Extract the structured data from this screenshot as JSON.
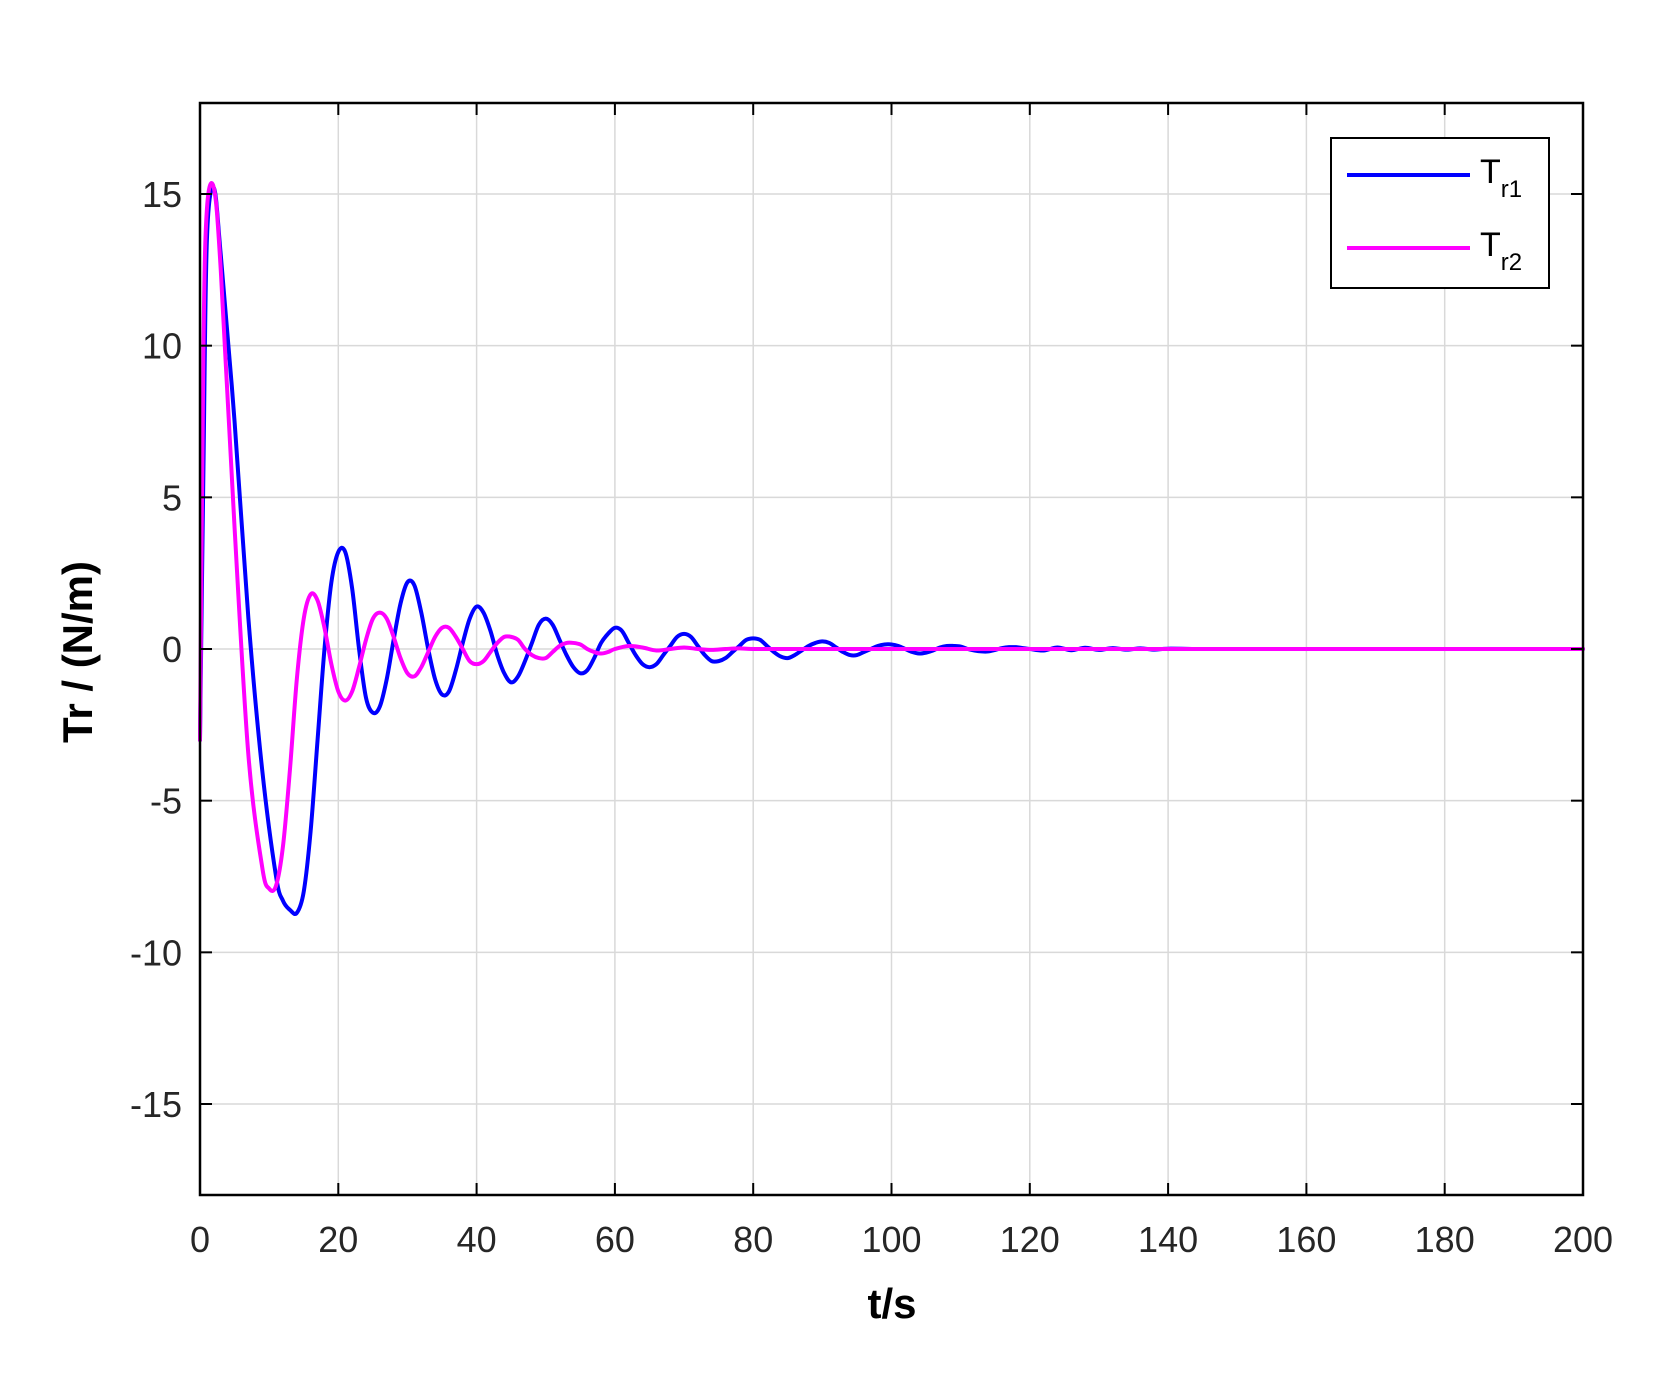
{
  "chart_data": {
    "type": "line",
    "title": "",
    "xlabel": "t/s",
    "ylabel": "Tr / (N/m)",
    "xlim": [
      0,
      200
    ],
    "ylim": [
      -18,
      18
    ],
    "xticks": [
      0,
      20,
      40,
      60,
      80,
      100,
      120,
      140,
      160,
      180,
      200
    ],
    "yticks": [
      -15,
      -10,
      -5,
      0,
      5,
      10,
      15
    ],
    "xtick_labels": [
      "0",
      "20",
      "40",
      "60",
      "80",
      "100",
      "120",
      "140",
      "160",
      "180",
      "200"
    ],
    "ytick_labels": [
      "-15",
      "-10",
      "-5",
      "0",
      "5",
      "10",
      "15"
    ],
    "grid": true,
    "legend_position": "top-right",
    "series": [
      {
        "name": "Tr1",
        "legend_main": "T",
        "legend_sub": "r1",
        "color": "#0000ff",
        "x": [
          0,
          0.5,
          1,
          2,
          3,
          5,
          7,
          9,
          11,
          12,
          13,
          14,
          15,
          16,
          17,
          18,
          19,
          20,
          21,
          22,
          23,
          24,
          25,
          26,
          27,
          28,
          29,
          30,
          31,
          32,
          33,
          34,
          35,
          36,
          37,
          38,
          39,
          40,
          41,
          42,
          43,
          44,
          45,
          46,
          47,
          48,
          49,
          50,
          51,
          52,
          53,
          54,
          55,
          56,
          57,
          58,
          59,
          60,
          61,
          62,
          63,
          64,
          65,
          66,
          67,
          68,
          69,
          70,
          71,
          72,
          73,
          74,
          75,
          76,
          77,
          78,
          79,
          80,
          81,
          82,
          83,
          84,
          85,
          86,
          87,
          88,
          89,
          90,
          91,
          92,
          93,
          94,
          95,
          96,
          97,
          98,
          99,
          100,
          101,
          102,
          103,
          104,
          105,
          106,
          107,
          108,
          109,
          110,
          111,
          112,
          113,
          114,
          115,
          116,
          117,
          118,
          119,
          120,
          122,
          124,
          126,
          128,
          130,
          132,
          134,
          136,
          138,
          140,
          145,
          150,
          155,
          160,
          170,
          180,
          190,
          200
        ],
        "y": [
          -3.0,
          6.0,
          13.5,
          15.2,
          13.0,
          7.5,
          1.0,
          -4.0,
          -7.5,
          -8.3,
          -8.6,
          -8.7,
          -8.0,
          -6.0,
          -3.0,
          0.0,
          2.2,
          3.2,
          3.2,
          2.0,
          0.0,
          -1.6,
          -2.1,
          -1.9,
          -1.0,
          0.3,
          1.5,
          2.2,
          2.1,
          1.2,
          0.0,
          -1.0,
          -1.5,
          -1.4,
          -0.7,
          0.2,
          1.0,
          1.4,
          1.2,
          0.6,
          -0.2,
          -0.8,
          -1.1,
          -0.9,
          -0.4,
          0.2,
          0.8,
          1.0,
          0.8,
          0.3,
          -0.2,
          -0.6,
          -0.8,
          -0.7,
          -0.3,
          0.2,
          0.5,
          0.7,
          0.6,
          0.2,
          -0.2,
          -0.5,
          -0.6,
          -0.5,
          -0.2,
          0.1,
          0.4,
          0.5,
          0.4,
          0.1,
          -0.2,
          -0.4,
          -0.4,
          -0.3,
          -0.1,
          0.1,
          0.3,
          0.35,
          0.3,
          0.1,
          -0.1,
          -0.25,
          -0.3,
          -0.2,
          -0.05,
          0.1,
          0.2,
          0.25,
          0.2,
          0.05,
          -0.1,
          -0.2,
          -0.2,
          -0.1,
          0.0,
          0.1,
          0.15,
          0.15,
          0.1,
          0.0,
          -0.1,
          -0.15,
          -0.12,
          -0.05,
          0.05,
          0.1,
          0.1,
          0.08,
          0.0,
          -0.05,
          -0.08,
          -0.08,
          -0.03,
          0.03,
          0.06,
          0.06,
          0.03,
          0.0,
          -0.05,
          0.05,
          -0.04,
          0.04,
          -0.03,
          0.03,
          -0.02,
          0.02,
          -0.02,
          0.01,
          0.0,
          0.0,
          0.0,
          0.0,
          0.0,
          0.0,
          0.0,
          0.0
        ]
      },
      {
        "name": "Tr2",
        "legend_main": "T",
        "legend_sub": "r2",
        "color": "#ff00ff",
        "x": [
          0,
          0.5,
          1,
          2,
          3,
          5,
          7,
          9,
          10,
          11,
          12,
          13,
          14,
          15,
          16,
          17,
          18,
          19,
          20,
          21,
          22,
          23,
          24,
          25,
          26,
          27,
          28,
          29,
          30,
          31,
          32,
          33,
          34,
          35,
          36,
          37,
          38,
          39,
          40,
          41,
          42,
          43,
          44,
          45,
          46,
          47,
          48,
          49,
          50,
          51,
          52,
          53,
          54,
          55,
          56,
          57,
          58,
          59,
          60,
          62,
          64,
          66,
          68,
          70,
          72,
          74,
          76,
          78,
          80,
          85,
          90,
          95,
          100,
          110,
          120,
          140,
          160,
          180,
          200
        ],
        "y": [
          -3.0,
          10.0,
          14.5,
          15.2,
          12.5,
          4.0,
          -3.5,
          -7.2,
          -7.9,
          -7.8,
          -6.5,
          -4.0,
          -1.0,
          1.0,
          1.8,
          1.6,
          0.7,
          -0.5,
          -1.4,
          -1.7,
          -1.4,
          -0.6,
          0.3,
          1.0,
          1.2,
          1.0,
          0.4,
          -0.3,
          -0.8,
          -0.9,
          -0.6,
          -0.1,
          0.4,
          0.7,
          0.7,
          0.4,
          0.0,
          -0.4,
          -0.5,
          -0.4,
          -0.1,
          0.2,
          0.4,
          0.4,
          0.3,
          0.0,
          -0.2,
          -0.3,
          -0.3,
          -0.1,
          0.1,
          0.2,
          0.2,
          0.15,
          0.0,
          -0.1,
          -0.15,
          -0.1,
          0.0,
          0.1,
          0.05,
          -0.05,
          0.0,
          0.05,
          0.0,
          -0.03,
          0.0,
          0.02,
          0.0,
          0.0,
          0.0,
          0.0,
          0.0,
          0.0,
          0.0,
          0.0,
          0.0,
          0.0,
          0.0
        ]
      }
    ]
  }
}
